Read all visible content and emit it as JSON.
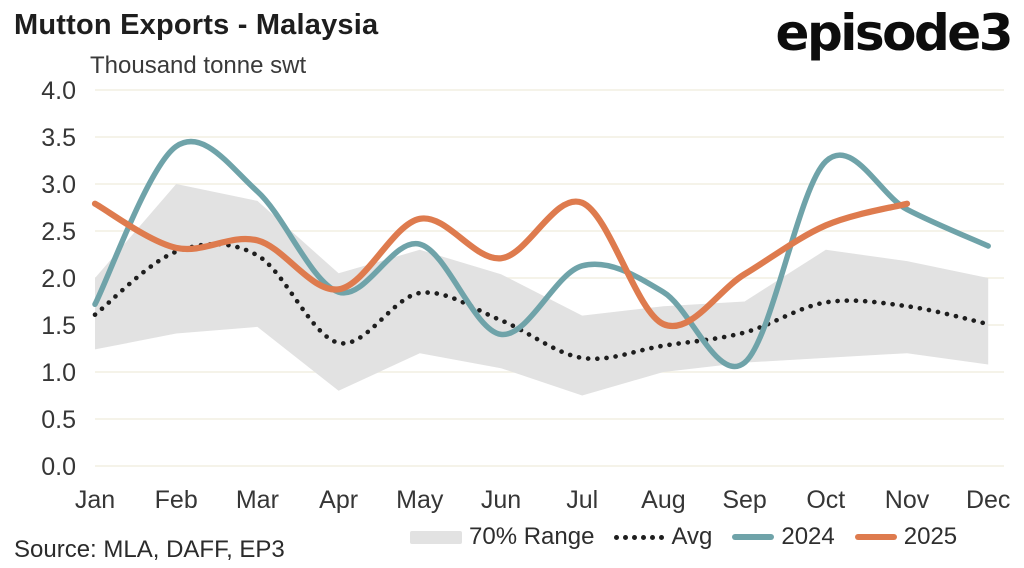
{
  "header": {
    "title": "Mutton Exports - Malaysia",
    "subtitle": "Thousand tonne swt",
    "logo": "episode3"
  },
  "source": "Source: MLA, DAFF, EP3",
  "legend": {
    "items": [
      {
        "label": "70% Range",
        "type": "band"
      },
      {
        "label": "Avg",
        "type": "dotted"
      },
      {
        "label": "2024",
        "type": "line"
      },
      {
        "label": "2025",
        "type": "line"
      }
    ]
  },
  "colors": {
    "band": "#E2E2E2",
    "avg": "#1E1E1E",
    "y2024": "#6FA3A9",
    "y2025": "#DE7B4E",
    "grid": "#F2EFE2",
    "axis_text": "#3a3a3a"
  },
  "chart_data": {
    "type": "line",
    "title": "Mutton Exports - Malaysia",
    "ylabel": "Thousand tonne swt",
    "xlabel": "",
    "categories": [
      "Jan",
      "Feb",
      "Mar",
      "Apr",
      "May",
      "Jun",
      "Jul",
      "Aug",
      "Sep",
      "Oct",
      "Nov",
      "Dec"
    ],
    "ylim": [
      0.0,
      4.0
    ],
    "ytick_labels": [
      "4.0",
      "3.5",
      "3.0",
      "2.5",
      "2.0",
      "1.5",
      "1.0",
      "0.5",
      "0.0"
    ],
    "grid": true,
    "legend_position": "bottom",
    "series": [
      {
        "name": "70% Range",
        "type": "band",
        "color": "#E2E2E2",
        "upper": [
          2.0,
          3.0,
          2.82,
          2.05,
          2.3,
          2.04,
          1.6,
          1.7,
          1.75,
          2.3,
          2.18,
          2.0
        ],
        "lower": [
          1.24,
          1.41,
          1.48,
          0.8,
          1.2,
          1.04,
          0.75,
          1.0,
          1.1,
          1.15,
          1.2,
          1.08
        ]
      },
      {
        "name": "Avg",
        "type": "dotted-line",
        "color": "#1E1E1E",
        "values": [
          1.61,
          2.28,
          2.24,
          1.31,
          1.84,
          1.55,
          1.15,
          1.28,
          1.42,
          1.74,
          1.7,
          1.51
        ]
      },
      {
        "name": "2024",
        "type": "line",
        "color": "#6FA3A9",
        "values": [
          1.72,
          3.4,
          2.92,
          1.85,
          2.36,
          1.4,
          2.13,
          1.85,
          1.1,
          3.24,
          2.73,
          2.34
        ]
      },
      {
        "name": "2025",
        "type": "line",
        "color": "#DE7B4E",
        "values": [
          2.79,
          2.32,
          2.4,
          1.88,
          2.63,
          2.21,
          2.8,
          1.51,
          2.04,
          2.56,
          2.79
        ]
      }
    ]
  }
}
